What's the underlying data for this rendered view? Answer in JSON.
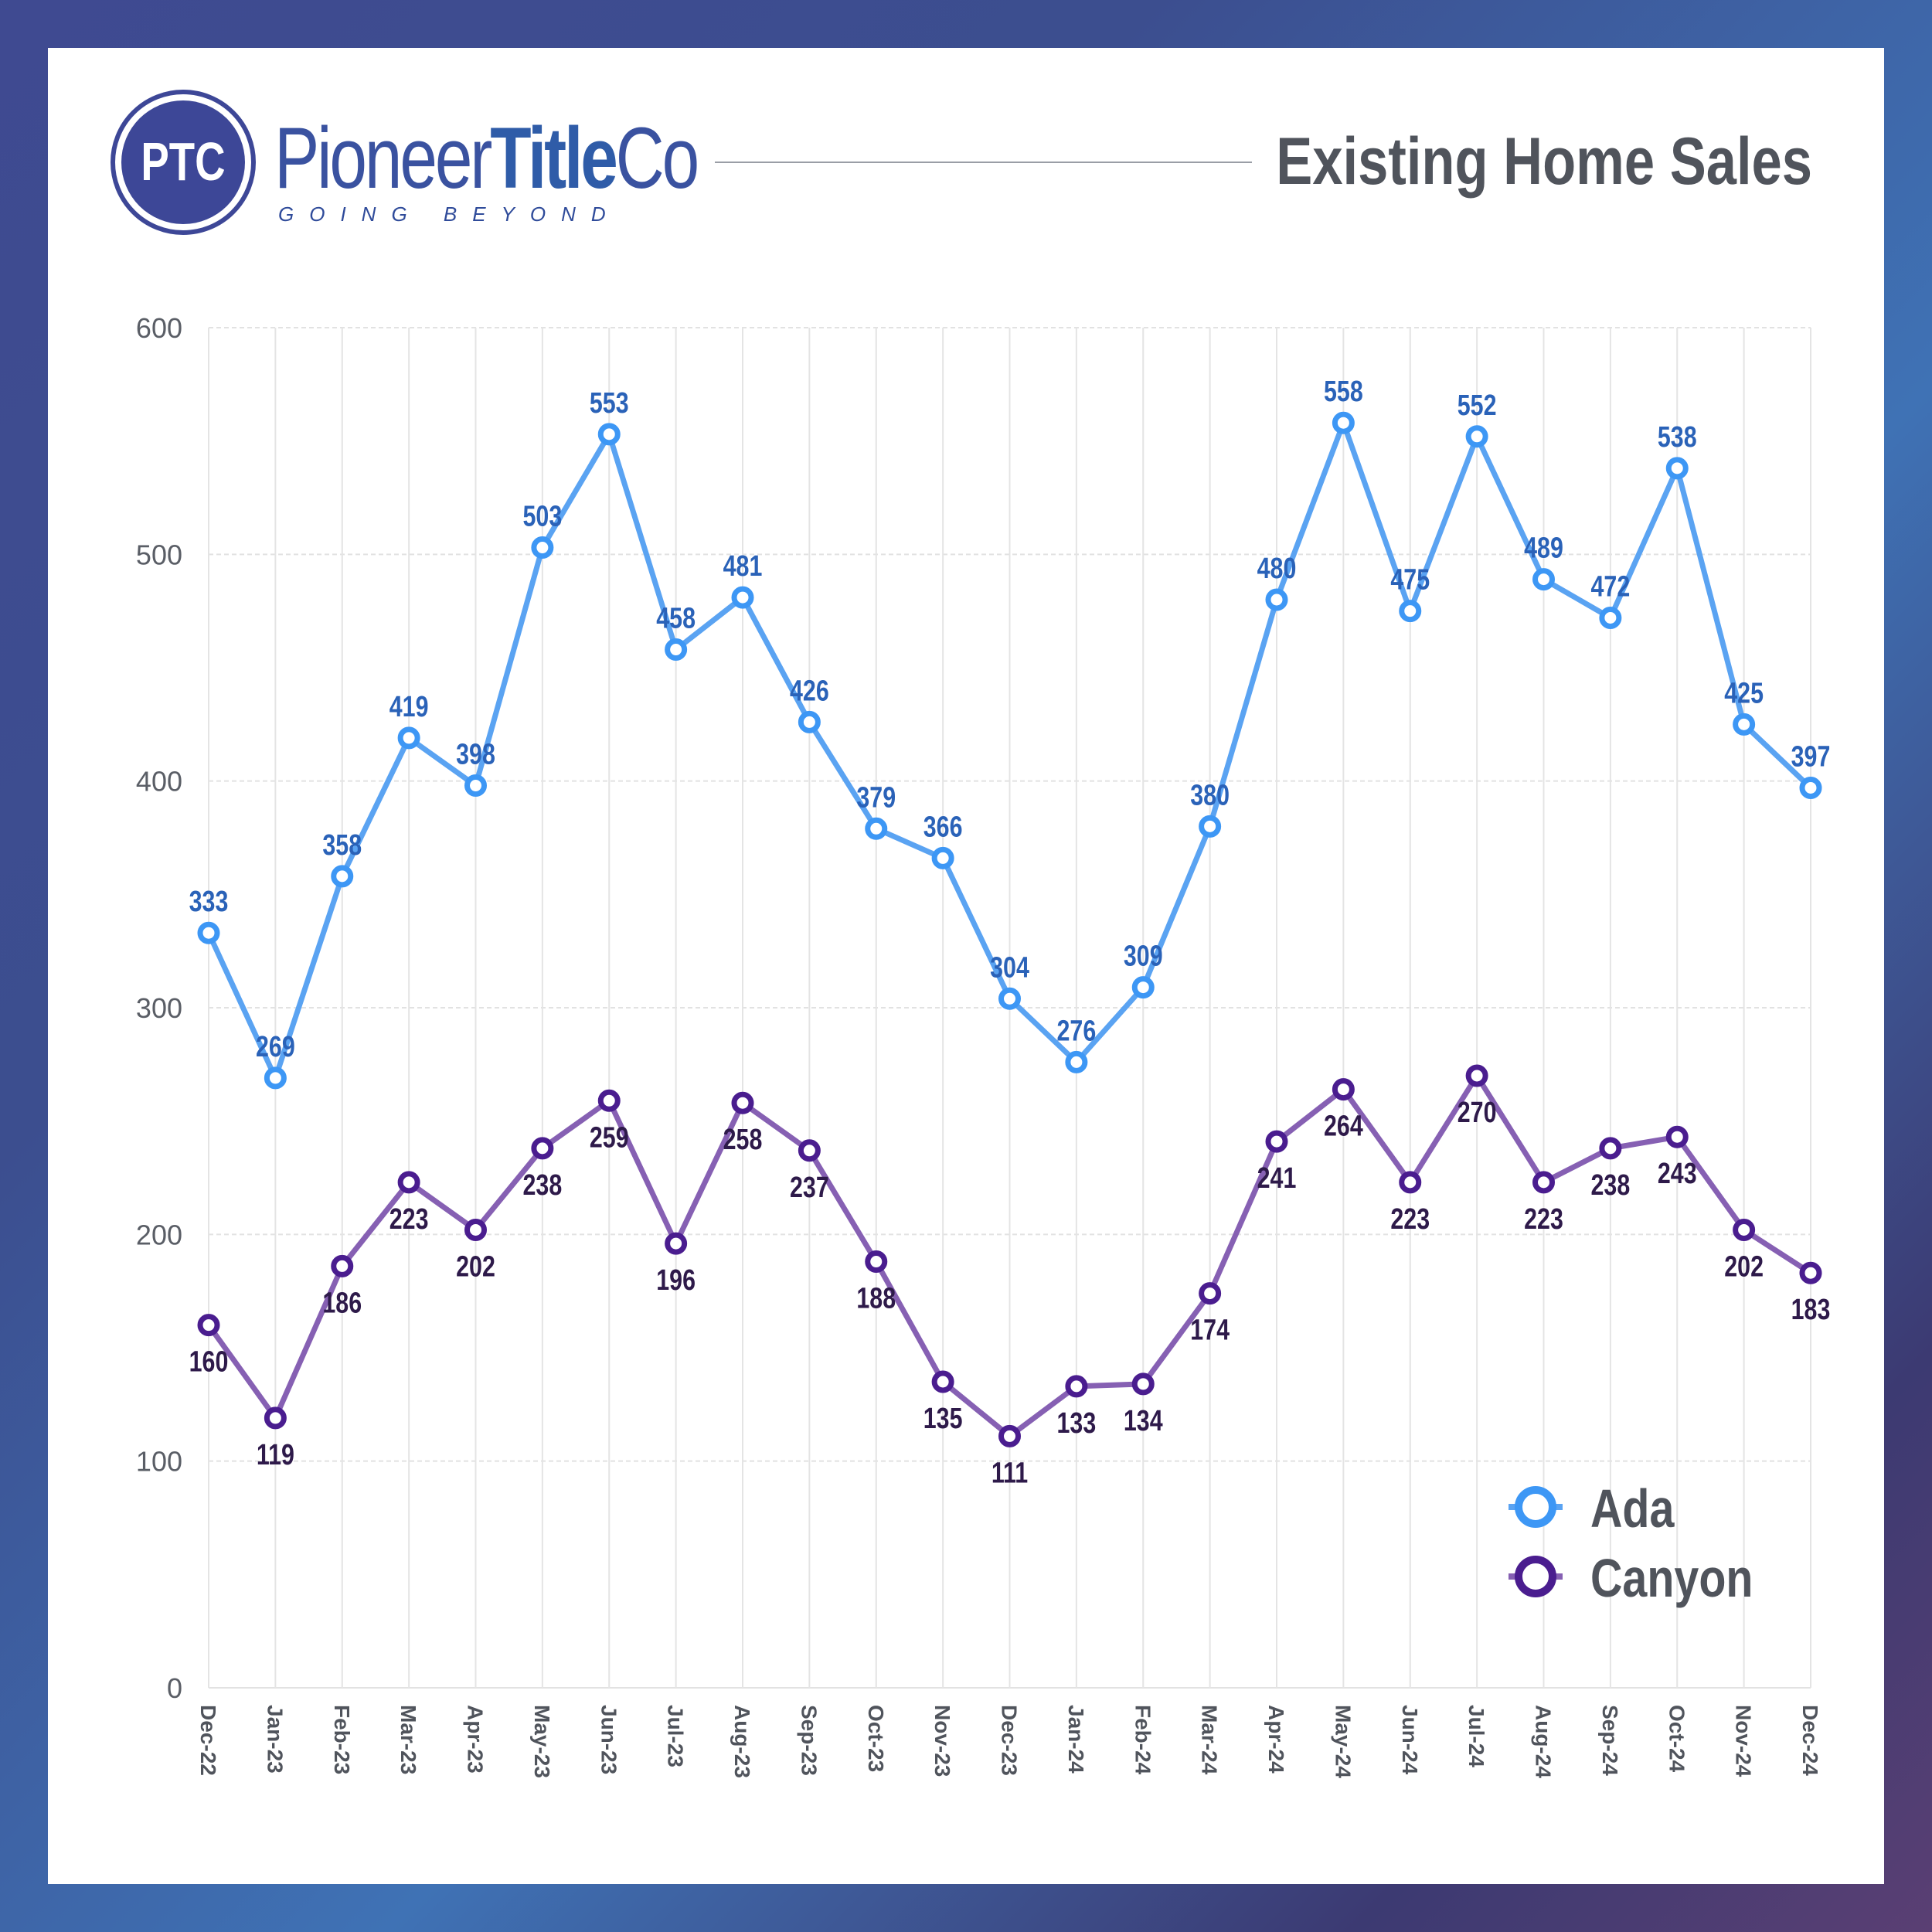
{
  "header": {
    "logo_mark": "PTC",
    "brand_light": "Pioneer",
    "brand_bold": "Title",
    "brand_tail": "Co",
    "tagline": "GOING BEYOND",
    "title": "Existing Home Sales"
  },
  "colors": {
    "ada": "#3d97f5",
    "ada_line": "#5aa3f2",
    "ada_label": "#2a62b8",
    "canyon": "#4a1d8f",
    "canyon_line": "#8660b3",
    "canyon_label": "#2e1a4a",
    "brand": "#3d4797"
  },
  "chart_data": {
    "type": "line",
    "title": "Existing Home Sales",
    "categories": [
      "Dec-22",
      "Jan-23",
      "Feb-23",
      "Mar-23",
      "Apr-23",
      "May-23",
      "Jun-23",
      "Jul-23",
      "Aug-23",
      "Sep-23",
      "Oct-23",
      "Nov-23",
      "Dec-23",
      "Jan-24",
      "Feb-24",
      "Mar-24",
      "Apr-24",
      "May-24",
      "Jun-24",
      "Jul-24",
      "Aug-24",
      "Sep-24",
      "Oct-24",
      "Nov-24",
      "Dec-24"
    ],
    "series": [
      {
        "name": "Ada",
        "values": [
          333,
          269,
          358,
          419,
          398,
          503,
          553,
          458,
          481,
          426,
          379,
          366,
          304,
          276,
          309,
          380,
          480,
          558,
          475,
          552,
          489,
          472,
          538,
          425,
          397
        ]
      },
      {
        "name": "Canyon",
        "values": [
          160,
          119,
          186,
          223,
          202,
          238,
          259,
          196,
          258,
          237,
          188,
          135,
          111,
          133,
          134,
          174,
          241,
          264,
          223,
          270,
          223,
          238,
          243,
          202,
          183
        ]
      }
    ],
    "ylim": [
      0,
      600
    ],
    "yticks": [
      0,
      100,
      200,
      300,
      400,
      500,
      600
    ],
    "grid": true,
    "legend": "bottom-right",
    "data_labels": true
  }
}
